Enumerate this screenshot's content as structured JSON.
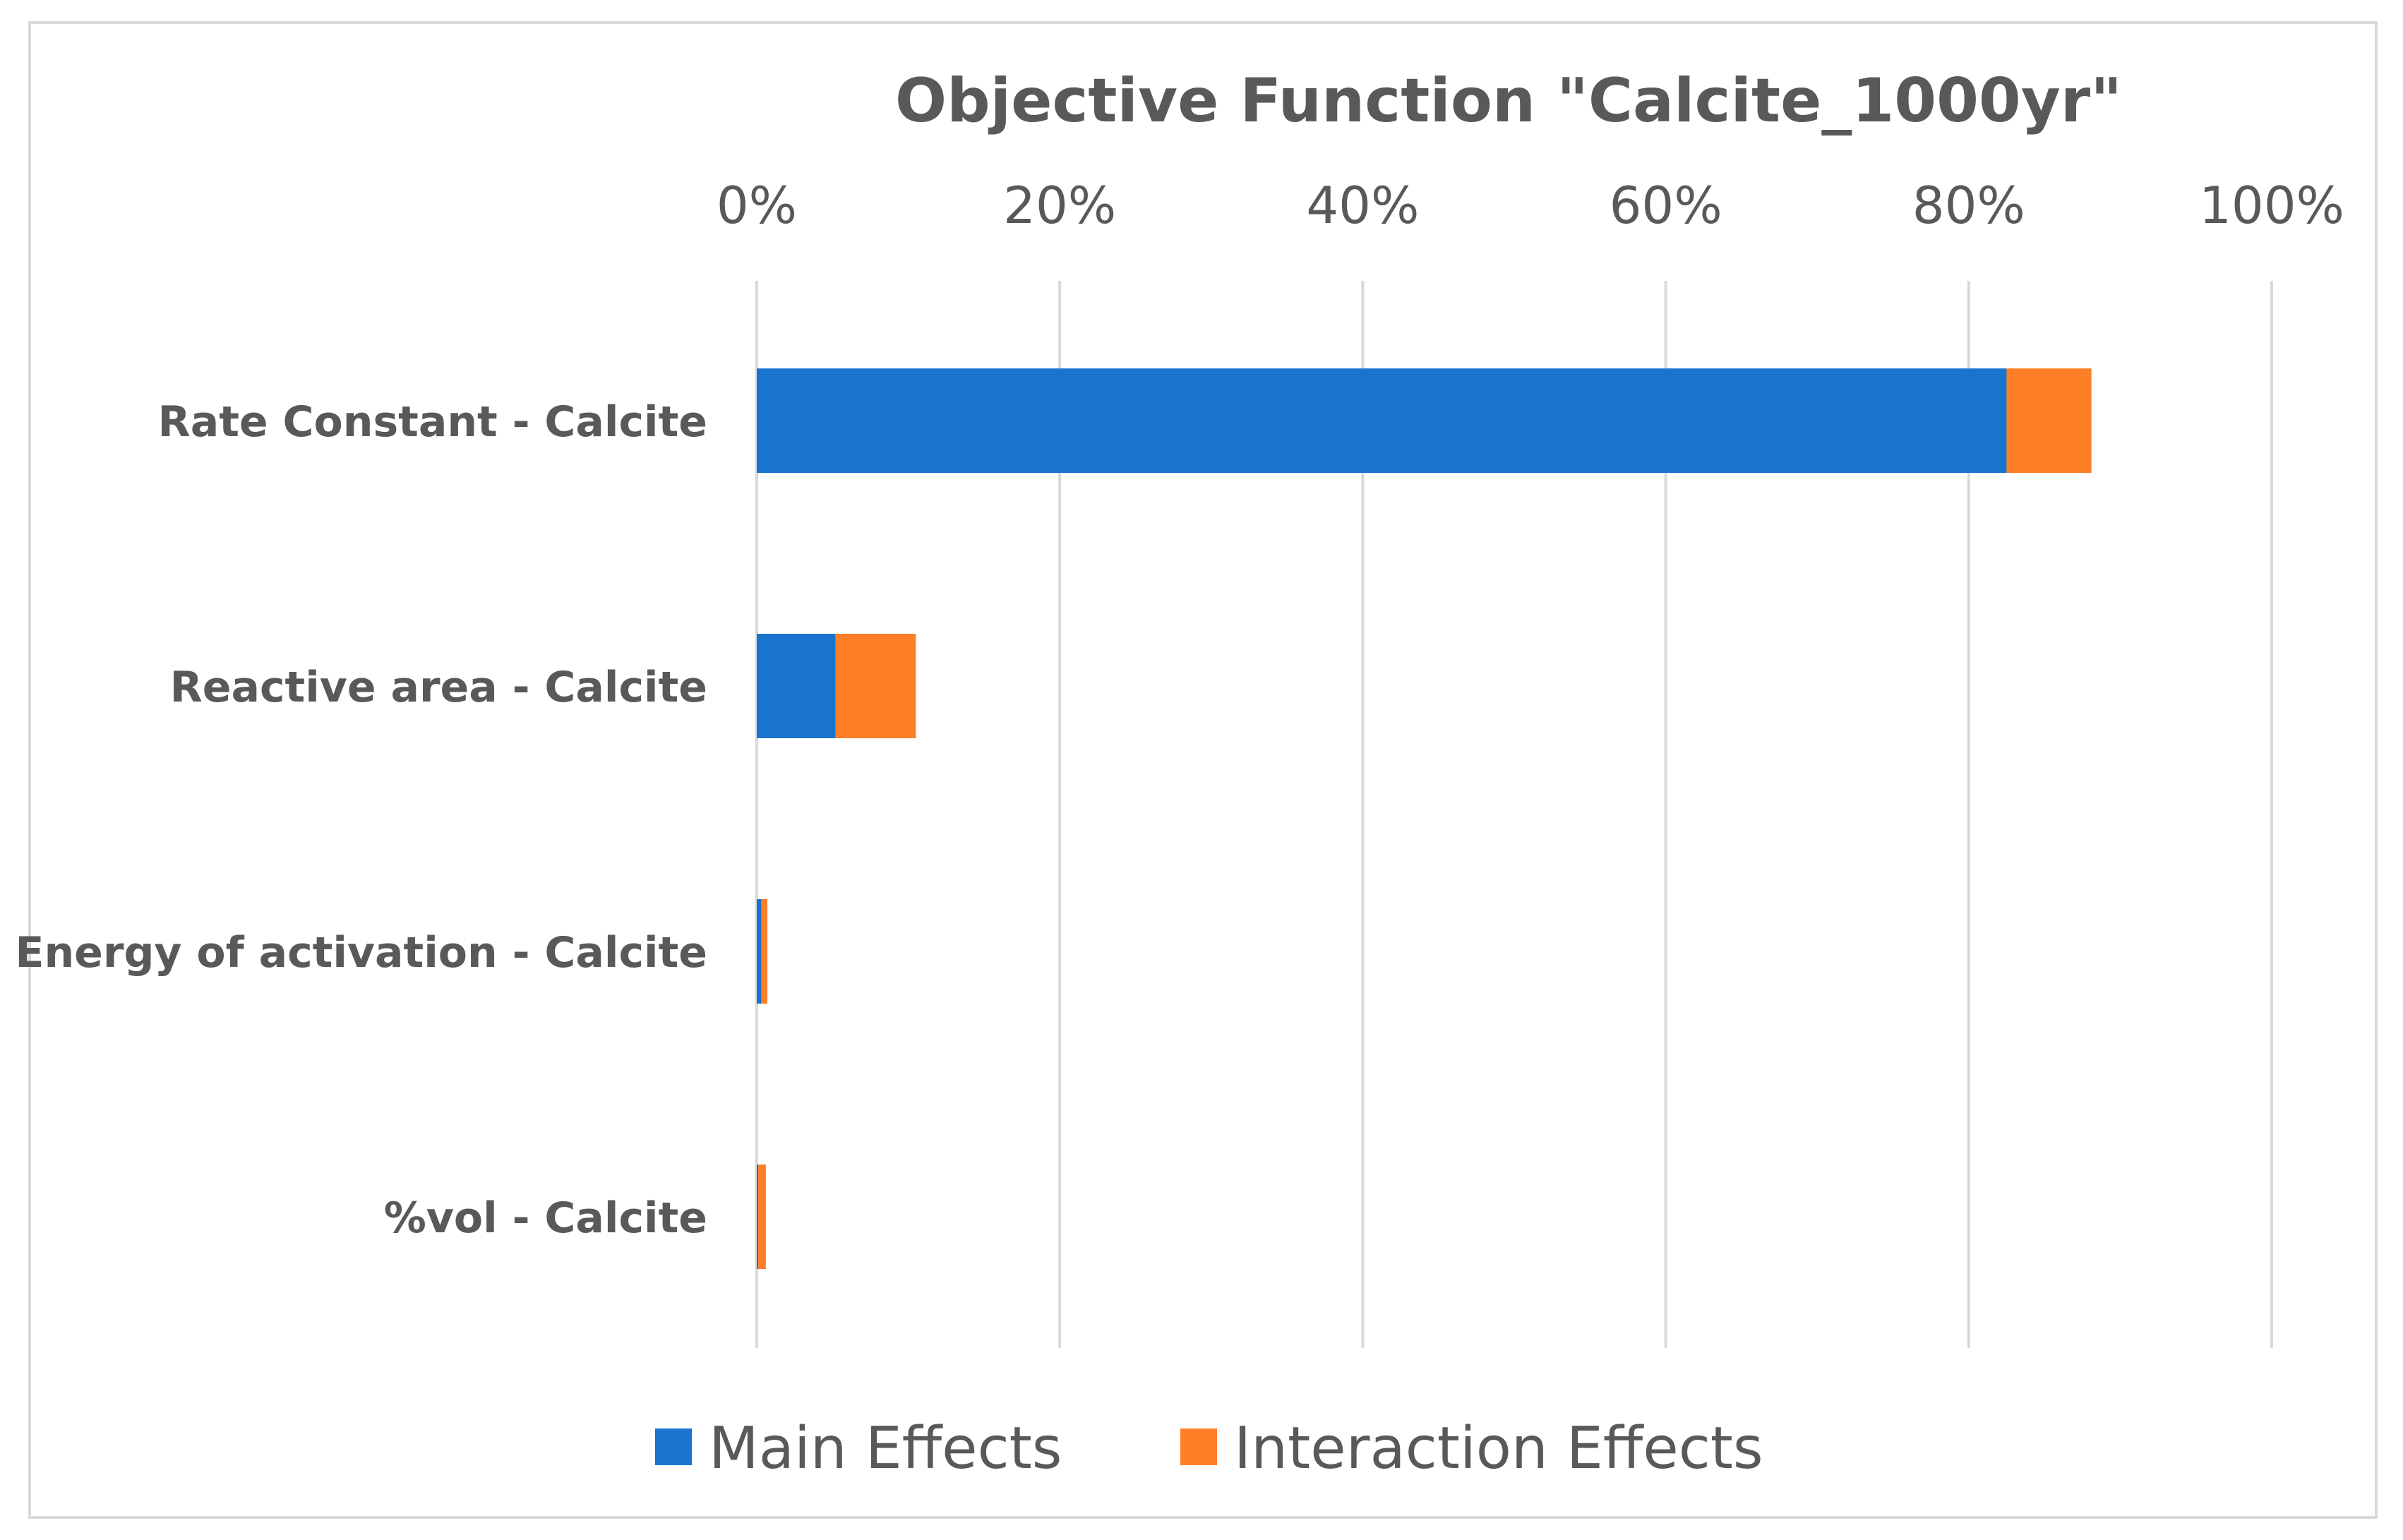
{
  "chart_data": {
    "type": "bar",
    "orientation": "horizontal",
    "stacked": true,
    "title": "Objective Function \"Calcite_1000yr\"",
    "xlabel": "",
    "ylabel": "",
    "xlim": [
      0,
      100
    ],
    "x_ticks": [
      "0%",
      "20%",
      "40%",
      "60%",
      "80%",
      "100%"
    ],
    "x_tick_values": [
      0,
      20,
      40,
      60,
      80,
      100
    ],
    "axis_position": "top",
    "grid": true,
    "legend_position": "bottom",
    "categories": [
      "Rate Constant - Calcite",
      "Reactive area - Calcite",
      "Energy of activation - Calcite",
      "%vol - Calcite"
    ],
    "series": [
      {
        "name": "Main Effects",
        "color": "#1874CD",
        "values": [
          82.5,
          5.2,
          0.3,
          0.1
        ]
      },
      {
        "name": "Interaction Effects",
        "color": "#FF7F27",
        "values": [
          5.6,
          5.3,
          0.4,
          0.5
        ]
      }
    ]
  }
}
